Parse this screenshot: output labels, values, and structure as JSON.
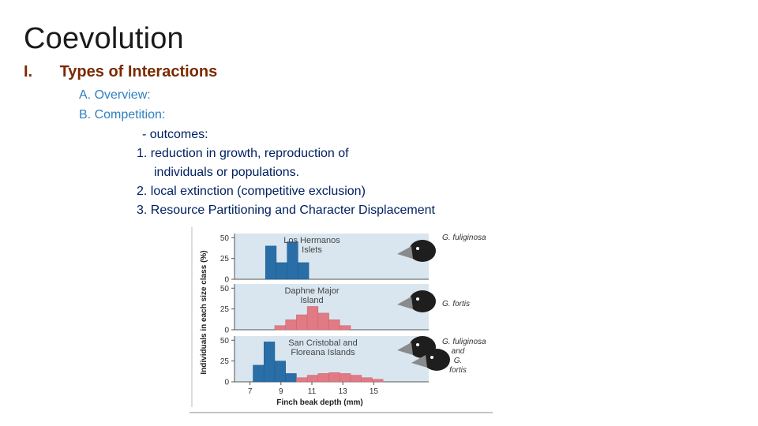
{
  "slide": {
    "title": "Coevolution",
    "section_number": "I.",
    "section_title": "Types of Interactions",
    "lines": [
      {
        "text": "A. Overview:"
      },
      {
        "text": "B. Competition:"
      },
      {
        "text": "- outcomes:"
      },
      {
        "text": "1. reduction in growth, reproduction of"
      },
      {
        "text": "individuals or populations."
      },
      {
        "text": "2. local extinction (competitive exclusion)"
      },
      {
        "text": "3. Resource Partitioning and Character Displacement"
      }
    ]
  },
  "chart_data": {
    "type": "bar",
    "xlabel": "Finch beak depth (mm)",
    "ylabel": "Individuals in each size class (%)",
    "x_ticks": [
      "7",
      "9",
      "11",
      "13",
      "15"
    ],
    "y_ticks": [
      "0",
      "25",
      "50"
    ],
    "panels": [
      {
        "label_lines": [
          "Los Hermanos",
          "Islets"
        ],
        "species_lines": [
          "G. fuliginosa"
        ],
        "bars": [
          {
            "x0": 8.0,
            "x1": 8.7,
            "value": 40,
            "color": "#2a6ea8"
          },
          {
            "x0": 8.7,
            "x1": 9.4,
            "value": 20,
            "color": "#2a6ea8"
          },
          {
            "x0": 9.4,
            "x1": 10.1,
            "value": 45,
            "color": "#2a6ea8"
          },
          {
            "x0": 10.1,
            "x1": 10.8,
            "value": 20,
            "color": "#2a6ea8"
          }
        ]
      },
      {
        "label_lines": [
          "Daphne Major",
          "Island"
        ],
        "species_lines": [
          "G. fortis"
        ],
        "bars": [
          {
            "x0": 8.6,
            "x1": 9.3,
            "value": 5,
            "color": "#e07a85"
          },
          {
            "x0": 9.3,
            "x1": 10.0,
            "value": 12,
            "color": "#e07a85"
          },
          {
            "x0": 10.0,
            "x1": 10.7,
            "value": 18,
            "color": "#e07a85"
          },
          {
            "x0": 10.7,
            "x1": 11.4,
            "value": 28,
            "color": "#e07a85"
          },
          {
            "x0": 11.4,
            "x1": 12.1,
            "value": 20,
            "color": "#e07a85"
          },
          {
            "x0": 12.1,
            "x1": 12.8,
            "value": 12,
            "color": "#e07a85"
          },
          {
            "x0": 12.8,
            "x1": 13.5,
            "value": 5,
            "color": "#e07a85"
          }
        ]
      },
      {
        "label_lines": [
          "San Cristobal and",
          "Floreana Islands"
        ],
        "species_lines": [
          "G. fuliginosa",
          "and",
          "G.",
          "fortis"
        ],
        "bars": [
          {
            "x0": 7.2,
            "x1": 7.9,
            "value": 20,
            "color": "#2a6ea8"
          },
          {
            "x0": 7.9,
            "x1": 8.6,
            "value": 48,
            "color": "#2a6ea8"
          },
          {
            "x0": 8.6,
            "x1": 9.3,
            "value": 25,
            "color": "#2a6ea8"
          },
          {
            "x0": 9.3,
            "x1": 10.0,
            "value": 10,
            "color": "#2a6ea8"
          },
          {
            "x0": 10.0,
            "x1": 10.7,
            "value": 5,
            "color": "#e07a85"
          },
          {
            "x0": 10.7,
            "x1": 11.4,
            "value": 8,
            "color": "#e07a85"
          },
          {
            "x0": 11.4,
            "x1": 12.1,
            "value": 10,
            "color": "#e07a85"
          },
          {
            "x0": 12.1,
            "x1": 12.8,
            "value": 11,
            "color": "#e07a85"
          },
          {
            "x0": 12.8,
            "x1": 13.5,
            "value": 10,
            "color": "#e07a85"
          },
          {
            "x0": 13.5,
            "x1": 14.2,
            "value": 8,
            "color": "#e07a85"
          },
          {
            "x0": 14.2,
            "x1": 14.9,
            "value": 5,
            "color": "#e07a85"
          },
          {
            "x0": 14.9,
            "x1": 15.6,
            "value": 3,
            "color": "#e07a85"
          }
        ]
      }
    ],
    "panel_background": "#d9e6ef",
    "x_range": [
      6,
      16
    ],
    "y_range": [
      0,
      55
    ]
  }
}
